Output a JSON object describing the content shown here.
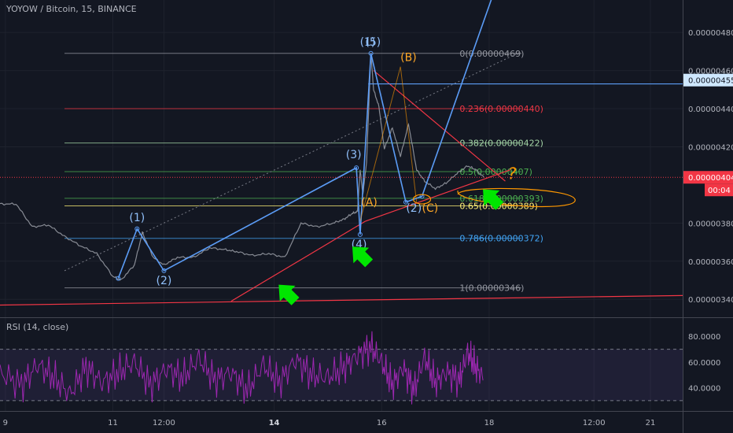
{
  "chart_data": {
    "type": "line",
    "title": "YOYOW / Bitcoin, 15, BINANCE",
    "price_axis": {
      "ylim": [
        3.31e-06,
        4.97e-06
      ],
      "ticks": [
        "0.00000480",
        "0.00000460",
        "0.00000440",
        "0.00000420",
        "0.00000380",
        "0.00000360",
        "0.00000340"
      ],
      "tick_values": [
        4.8e-06,
        4.6e-06,
        4.4e-06,
        4.2e-06,
        3.8e-06,
        3.6e-06,
        3.4e-06
      ]
    },
    "time_axis": {
      "ticks": [
        "9",
        "11",
        "12:00",
        "14",
        "16",
        "18",
        "12:00",
        "21"
      ],
      "tick_days": [
        9,
        11,
        11.95,
        14,
        16,
        18,
        19.95,
        21
      ],
      "xlim": [
        8.9,
        21.6
      ]
    },
    "price_labels": [
      {
        "text": "0.00000455",
        "value": 4.55e-06,
        "style": "highlight"
      },
      {
        "text": "0.00000404",
        "value": 4.04e-06,
        "style": "current"
      },
      {
        "text": "00:04",
        "style": "countdown"
      }
    ],
    "price_series": {
      "name": "YOYOW/BTC",
      "x": [
        8.9,
        9.2,
        9.5,
        9.8,
        10.1,
        10.4,
        10.7,
        11.0,
        11.15,
        11.4,
        11.55,
        11.75,
        11.95,
        12.2,
        12.5,
        12.8,
        13.1,
        13.3,
        13.6,
        13.9,
        14.2,
        14.5,
        14.8,
        15.1,
        15.3,
        15.45,
        15.55,
        15.6,
        15.65,
        15.72,
        15.8,
        15.85,
        15.95,
        16.05,
        16.2,
        16.35,
        16.5,
        16.65,
        16.8,
        17.0,
        17.2,
        17.4,
        17.6,
        17.75,
        17.9
      ],
      "y": [
        3.9e-06,
        3.9e-06,
        3.78e-06,
        3.79e-06,
        3.73e-06,
        3.68e-06,
        3.64e-06,
        3.52e-06,
        3.5e-06,
        3.58e-06,
        3.75e-06,
        3.62e-06,
        3.58e-06,
        3.62e-06,
        3.62e-06,
        3.67e-06,
        3.66e-06,
        3.65e-06,
        3.63e-06,
        3.64e-06,
        3.62e-06,
        3.8e-06,
        3.78e-06,
        3.8e-06,
        3.82e-06,
        3.85e-06,
        3.86e-06,
        4.08e-06,
        3.95e-06,
        4.12e-06,
        4.69e-06,
        4.5e-06,
        4.41e-06,
        4.19e-06,
        4.3e-06,
        4.15e-06,
        4.32e-06,
        4.08e-06,
        4.02e-06,
        3.98e-06,
        4.01e-06,
        4.06e-06,
        4.1e-06,
        4.08e-06,
        4.04e-06
      ]
    },
    "fibonacci": [
      {
        "text": "0(0.00000469)",
        "value": 4.69e-06,
        "color": "#9598a1"
      },
      {
        "text": "0.236(0.00000440)",
        "value": 4.4e-06,
        "color": "#f23645"
      },
      {
        "text": "0.382(0.00000422)",
        "value": 4.22e-06,
        "color": "#a5d6a7"
      },
      {
        "text": "0.5(0.00000407)",
        "value": 4.07e-06,
        "color": "#4caf50"
      },
      {
        "text": "0.618(0.00000393)",
        "value": 3.93e-06,
        "color": "#4caf50"
      },
      {
        "text": "0.65(0.00000389)",
        "value": 3.89e-06,
        "color": "#fff176"
      },
      {
        "text": "0.786(0.00000372)",
        "value": 3.72e-06,
        "color": "#42a5f5"
      },
      {
        "text": "1(0.00000346)",
        "value": 3.46e-06,
        "color": "#9598a1"
      }
    ],
    "elliott_blue": {
      "points": [
        [
          11.1,
          3.51e-06
        ],
        [
          11.45,
          3.77e-06
        ],
        [
          11.95,
          3.55e-06
        ],
        [
          15.53,
          4.09e-06
        ],
        [
          15.6,
          3.74e-06
        ],
        [
          15.8,
          4.69e-06
        ],
        [
          16.45,
          3.91e-06
        ],
        [
          16.75,
          3.94e-06
        ],
        [
          18.2,
          5.1e-06
        ]
      ],
      "labels": [
        {
          "text": "(1)",
          "x": 11.45,
          "y": 3.81e-06
        },
        {
          "text": "(2)",
          "x": 11.95,
          "y": 3.48e-06
        },
        {
          "text": "(3)",
          "x": 15.48,
          "y": 4.14e-06
        },
        {
          "text": "(4)",
          "x": 15.58,
          "y": 3.67e-06
        },
        {
          "text": "(1)",
          "x": 15.74,
          "y": 4.73e-06
        },
        {
          "text": "(5)",
          "x": 15.84,
          "y": 4.73e-06
        },
        {
          "text": "(2)",
          "x": 16.6,
          "y": 3.86e-06
        }
      ]
    },
    "abc_orange": {
      "points": [
        [
          15.6,
          3.81e-06
        ],
        [
          16.35,
          4.62e-06
        ],
        [
          16.65,
          3.91e-06
        ]
      ],
      "labels": [
        {
          "text": "(A)",
          "x": 15.62,
          "y": 3.89e-06
        },
        {
          "text": "(B)",
          "x": 16.35,
          "y": 4.65e-06
        },
        {
          "text": "(C)",
          "x": 16.75,
          "y": 3.86e-06
        }
      ]
    },
    "trendlines": [
      {
        "from": [
          8.9,
          3.37e-06
        ],
        "to": [
          21.6,
          3.42e-06
        ],
        "color": "#f23645"
      },
      {
        "from": [
          13.2,
          3.39e-06
        ],
        "to": [
          15.7,
          3.81e-06
        ],
        "color": "#f23645"
      },
      {
        "from": [
          15.7,
          3.81e-06
        ],
        "to": [
          18.4,
          4.08e-06
        ],
        "color": "#f23645"
      },
      {
        "from": [
          15.85,
          4.6e-06
        ],
        "to": [
          18.3,
          4.02e-06
        ],
        "color": "#f23645"
      },
      {
        "from": [
          15.75,
          4.53e-06
        ],
        "to": [
          21.6,
          4.53e-06
        ],
        "color": "#5b9cf6"
      }
    ],
    "diagonal_dotted": {
      "from": [
        10.1,
        3.55e-06
      ],
      "to": [
        18.6,
        4.7e-06
      ]
    },
    "green_arrows": [
      {
        "x": 14.25,
        "y": 3.43e-06
      },
      {
        "x": 15.62,
        "y": 3.63e-06
      },
      {
        "x": 18.05,
        "y": 3.93e-06
      }
    ],
    "annotation": {
      "text": "?",
      "x": 18.35,
      "y": 4.03e-06
    },
    "rsi": {
      "title": "RSI (14, close)",
      "ticks": [
        "80.0000",
        "60.0000",
        "40.0000"
      ],
      "tick_values": [
        80,
        60,
        40
      ],
      "ylim": [
        22,
        93
      ],
      "bands": [
        70,
        30
      ],
      "x": [
        8.9,
        9.3,
        9.6,
        9.9,
        10.2,
        10.5,
        10.8,
        11.1,
        11.4,
        11.7,
        12.0,
        12.3,
        12.6,
        12.9,
        13.2,
        13.5,
        13.8,
        14.1,
        14.4,
        14.7,
        15.0,
        15.3,
        15.55,
        15.8,
        16.0,
        16.2,
        16.4,
        16.6,
        16.8,
        17.0,
        17.2,
        17.45,
        17.6,
        17.75,
        17.9
      ],
      "values": [
        52,
        42,
        58,
        48,
        35,
        56,
        44,
        52,
        60,
        42,
        55,
        48,
        63,
        46,
        52,
        38,
        58,
        44,
        62,
        50,
        48,
        56,
        65,
        72,
        60,
        42,
        56,
        38,
        64,
        44,
        52,
        46,
        68,
        56,
        48
      ]
    }
  }
}
